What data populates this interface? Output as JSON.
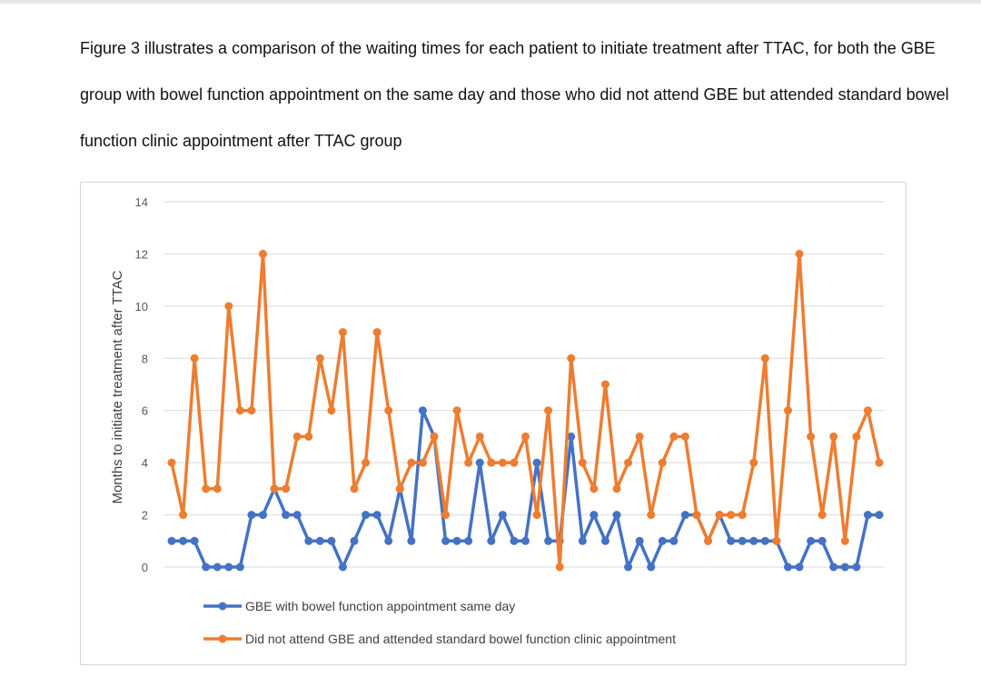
{
  "caption": "Figure 3 illustrates a comparison of the waiting times for each patient to initiate treatment after TTAC, for both the GBE group with bowel function appointment on the same day and those who did not attend GBE but attended standard bowel function clinic appointment after TTAC group",
  "chart_data": {
    "type": "line",
    "title": "",
    "xlabel": "",
    "ylabel": "Months to initiate treatment after TTAC",
    "ylim": [
      0,
      14
    ],
    "yticks": [
      0,
      2,
      4,
      6,
      8,
      10,
      12,
      14
    ],
    "grid": true,
    "legend_position": "bottom",
    "series": [
      {
        "name": "GBE with bowel function appointment same day",
        "color": "#4472C4",
        "values": [
          1,
          1,
          1,
          0,
          0,
          0,
          0,
          2,
          2,
          3,
          2,
          2,
          1,
          1,
          1,
          0,
          1,
          2,
          2,
          1,
          3,
          1,
          6,
          5,
          1,
          1,
          1,
          4,
          1,
          2,
          1,
          1,
          4,
          1,
          1,
          5,
          1,
          2,
          1,
          2,
          0,
          1,
          0,
          1,
          1,
          2,
          2,
          1,
          2,
          1,
          1,
          1,
          1,
          1,
          0,
          0,
          1,
          1,
          0,
          0,
          0,
          2,
          2
        ]
      },
      {
        "name": "Did not attend GBE and attended standard bowel function clinic appointment",
        "color": "#ED7D31",
        "values": [
          4,
          2,
          8,
          3,
          3,
          10,
          6,
          6,
          12,
          3,
          3,
          5,
          5,
          8,
          6,
          9,
          3,
          4,
          9,
          6,
          3,
          4,
          4,
          5,
          2,
          6,
          4,
          5,
          4,
          4,
          4,
          5,
          2,
          6,
          0,
          8,
          4,
          3,
          7,
          3,
          4,
          5,
          2,
          4,
          5,
          5,
          2,
          1,
          2,
          2,
          2,
          4,
          8,
          1,
          6,
          12,
          5,
          2,
          5,
          1,
          5,
          6,
          4
        ]
      }
    ]
  }
}
